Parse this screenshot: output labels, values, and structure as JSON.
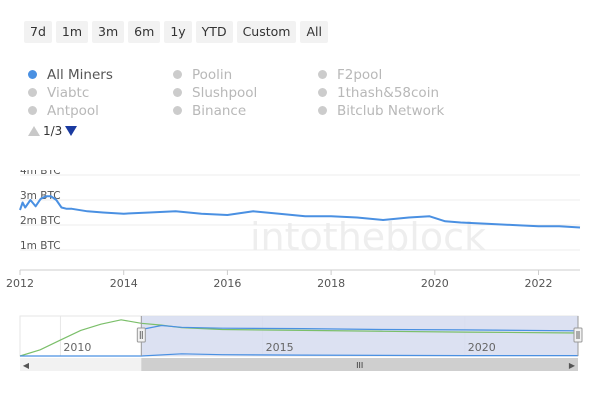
{
  "range_selector": {
    "buttons": [
      "7d",
      "1m",
      "3m",
      "6m",
      "1y",
      "YTD",
      "Custom",
      "All"
    ]
  },
  "legend": {
    "items": [
      {
        "label": "All Miners",
        "active": true
      },
      {
        "label": "Poolin",
        "active": false
      },
      {
        "label": "F2pool",
        "active": false
      },
      {
        "label": "Viabtc",
        "active": false
      },
      {
        "label": "Slushpool",
        "active": false
      },
      {
        "label": "1thash&58coin",
        "active": false
      },
      {
        "label": "Antpool",
        "active": false
      },
      {
        "label": "Binance",
        "active": false
      },
      {
        "label": "Bitclub Network",
        "active": false
      }
    ],
    "page_label": "1/3"
  },
  "watermark": "intotheblock",
  "colors": {
    "series": "#4a90e2",
    "navigator_alt": "#7bbf6a",
    "nav_mask": "#d6dcf0",
    "inactive": "#cccccc"
  },
  "chart_data": {
    "type": "line",
    "title": "",
    "xlabel": "",
    "ylabel": "",
    "x_ticks": [
      "2012",
      "2014",
      "2016",
      "2018",
      "2020",
      "2022"
    ],
    "y_ticks": [
      "1m BTC",
      "2m BTC",
      "3m BTC",
      "4m BTC"
    ],
    "ylim": [
      0,
      4000000
    ],
    "xlim": [
      2012,
      2022.8
    ],
    "legend_position": "top-left",
    "grid": true,
    "series": [
      {
        "name": "All Miners",
        "color": "#4a90e2",
        "x": [
          2012.0,
          2012.05,
          2012.1,
          2012.2,
          2012.3,
          2012.4,
          2012.5,
          2012.6,
          2012.7,
          2012.8,
          2012.9,
          2013.0,
          2013.3,
          2013.6,
          2014.0,
          2014.5,
          2015.0,
          2015.5,
          2016.0,
          2016.5,
          2017.0,
          2017.5,
          2018.0,
          2018.5,
          2019.0,
          2019.5,
          2019.9,
          2020.2,
          2020.5,
          2021.0,
          2021.5,
          2022.0,
          2022.4,
          2022.8
        ],
        "y": [
          2600000,
          2900000,
          2700000,
          3000000,
          2750000,
          3050000,
          3150000,
          3150000,
          3000000,
          2700000,
          2650000,
          2650000,
          2550000,
          2500000,
          2450000,
          2500000,
          2550000,
          2450000,
          2400000,
          2550000,
          2450000,
          2350000,
          2350000,
          2300000,
          2200000,
          2300000,
          2350000,
          2150000,
          2100000,
          2050000,
          2000000,
          1950000,
          1950000,
          1900000
        ]
      }
    ]
  },
  "navigator": {
    "x_ticks": [
      "2010",
      "2015",
      "2020"
    ],
    "xlim": [
      2009,
      2022.8
    ],
    "selection": [
      2012,
      2022.8
    ],
    "handle_glyph": "III",
    "scroll_left_glyph": "◀",
    "scroll_right_glyph": "▶",
    "series_all": {
      "x": [
        2009.0,
        2009.5,
        2010.0,
        2010.5,
        2011.0,
        2011.5,
        2012.0,
        2012.5,
        2013.0,
        2014.0,
        2016.0,
        2018.0,
        2020.0,
        2022.8
      ],
      "y": [
        0,
        700000,
        1800000,
        2900000,
        3600000,
        4100000,
        3700000,
        3500000,
        3200000,
        3000000,
        2900000,
        2800000,
        2700000,
        2600000
      ]
    },
    "series_miners": {
      "x": [
        2012.0,
        2012.5,
        2013.0,
        2014.0,
        2016.0,
        2018.0,
        2020.0,
        2022.8
      ],
      "y": [
        3000000,
        3450000,
        3250000,
        3150000,
        3100000,
        3000000,
        2950000,
        2850000
      ]
    },
    "series_low": {
      "x": [
        2009.0,
        2012.0,
        2013.0,
        2014.0,
        2016.0,
        2020.0,
        2022.8
      ],
      "y": [
        0,
        0,
        250000,
        150000,
        100000,
        50000,
        50000
      ]
    }
  }
}
